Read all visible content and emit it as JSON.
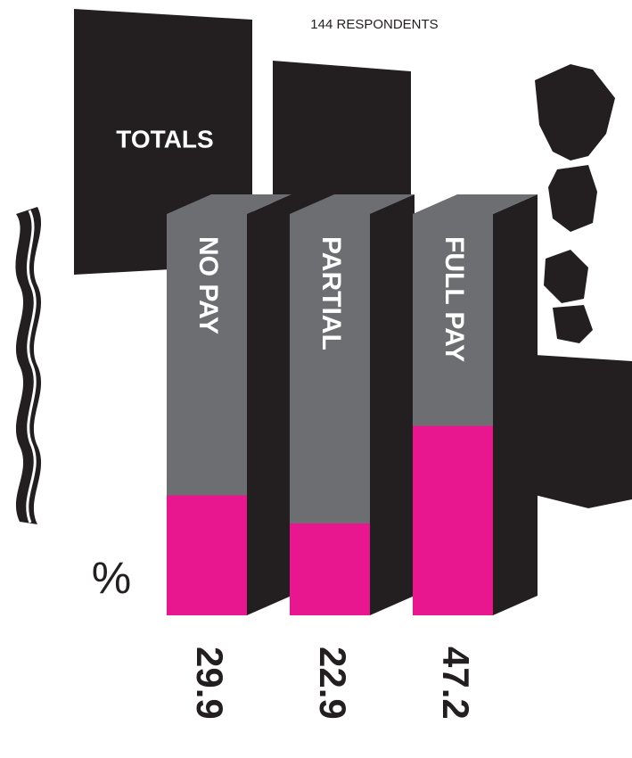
{
  "chart_data": {
    "type": "bar",
    "title": "TOTALS",
    "subtitle": "144 RESPONDENTS",
    "y_label": "%",
    "categories": [
      "NO PAY",
      "PARTIAL",
      "FULL PAY"
    ],
    "values": [
      29.9,
      22.9,
      47.2
    ],
    "color": "#e8168f",
    "ylim": [
      0,
      100
    ]
  }
}
